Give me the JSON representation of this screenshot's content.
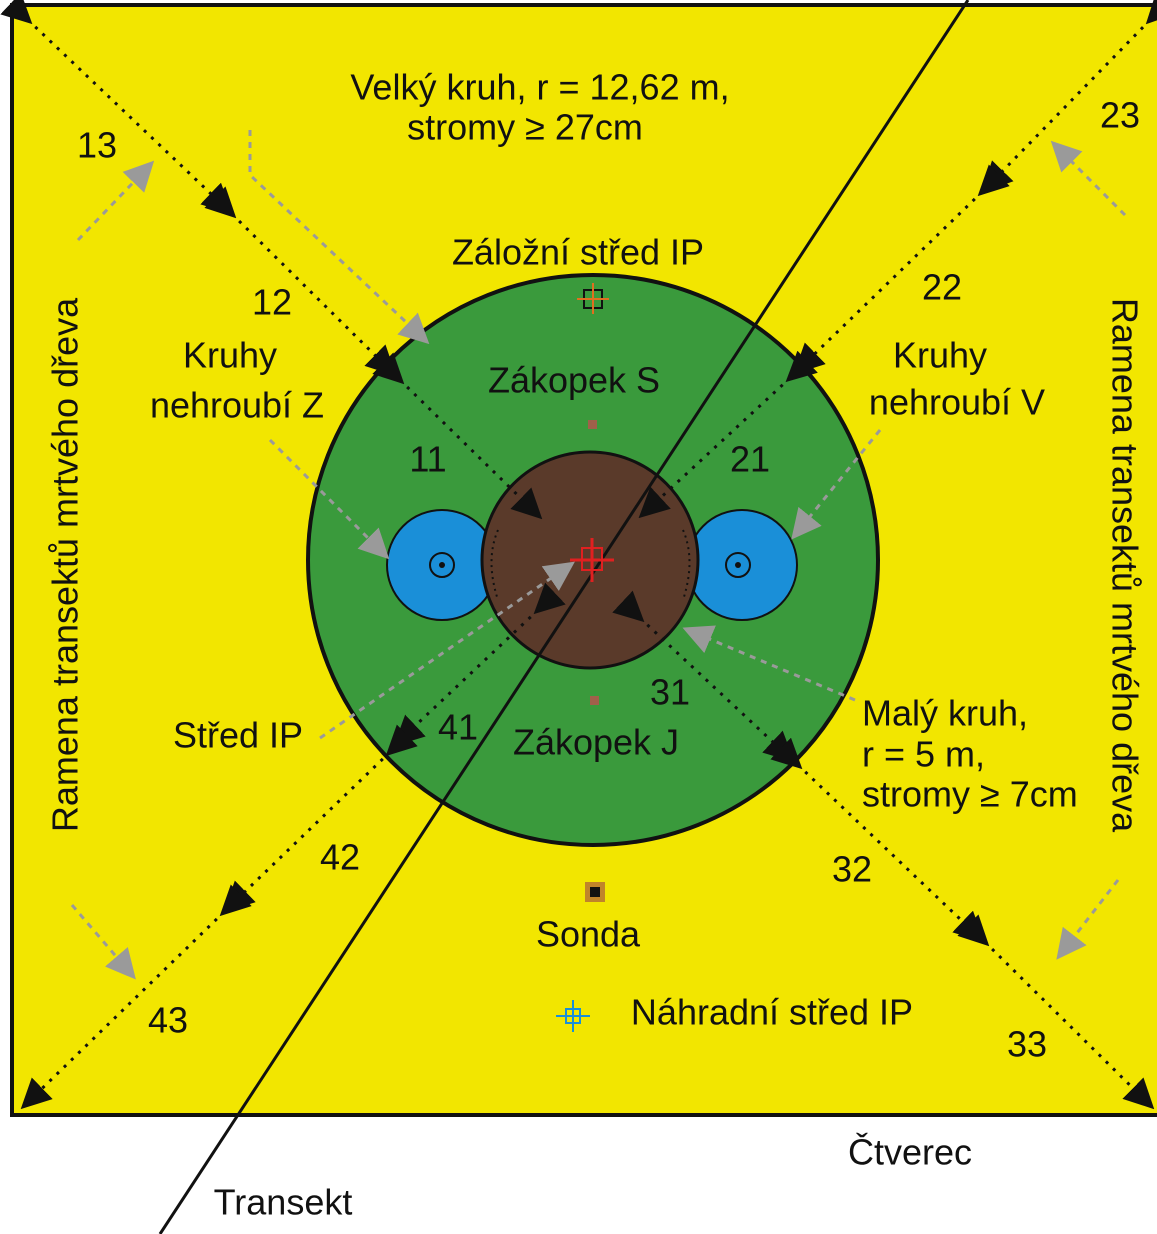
{
  "title": {
    "lines": [
      "Velký kruh, r = 12,62 m,",
      "stromy ≥ 27cm"
    ]
  },
  "labels": {
    "backup_center": "Záložní střed IP",
    "pit_north": "Zákopek S",
    "pit_south": "Zákopek J",
    "center": "Střed IP",
    "probe": "Sonda",
    "substitute_center": "Náhradní střed IP",
    "square": "Čtverec",
    "transect": "Transekt"
  },
  "undergrowth_west": [
    "Kruhy",
    "nehroubí Z"
  ],
  "undergrowth_east": [
    "Kruhy",
    "nehroubí V"
  ],
  "small_circle": [
    "Malý kruh,",
    "r = 5  m,",
    "stromy ≥ 7cm"
  ],
  "dead_wood": [
    "Ramena transektů mrtvého dřeva",
    "Ramena transektů mrtvého dřeva"
  ],
  "segments": [
    "11",
    "12",
    "13",
    "21",
    "22",
    "23",
    "31",
    "32",
    "33",
    "41",
    "42",
    "43"
  ]
}
